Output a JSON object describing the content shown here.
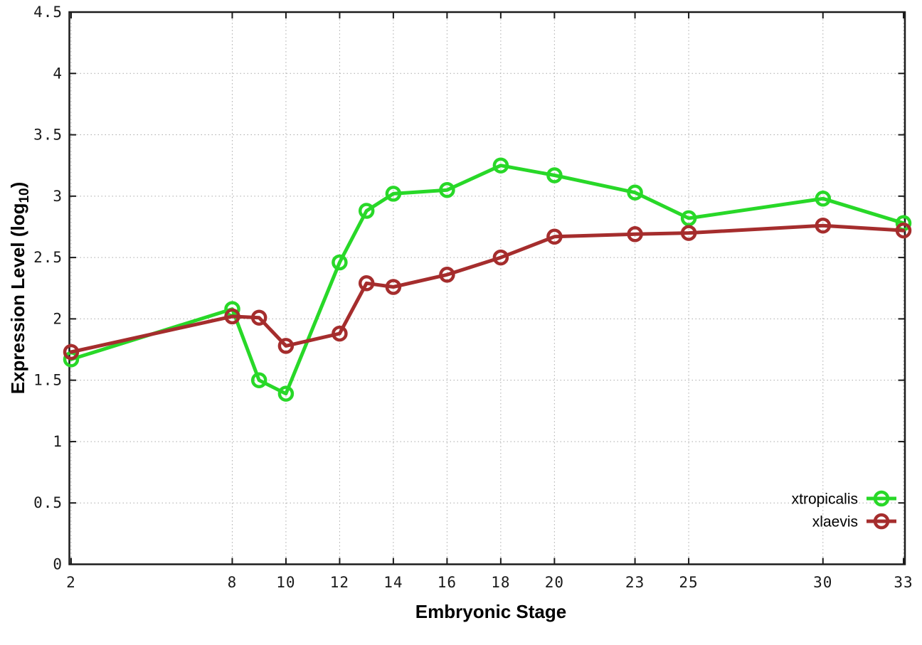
{
  "figure": {
    "background": "#ffffff",
    "xlabel": "Embryonic Stage",
    "ylabel": {
      "prefix": "Expression Level (log",
      "sub": "10",
      "suffix": ")"
    },
    "border_color": "#1c1c1c",
    "grid_color": "#aaaaaa"
  },
  "chart_data": {
    "type": "line",
    "title": "",
    "xlabel": "Embryonic Stage",
    "ylabel": "Expression Level (log10)",
    "x": [
      2,
      8,
      9,
      10,
      12,
      13,
      14,
      16,
      18,
      20,
      23,
      25,
      30,
      33
    ],
    "series": [
      {
        "name": "xtropicalis",
        "color": "#28d828",
        "values": [
          1.67,
          2.08,
          1.5,
          1.39,
          2.46,
          2.88,
          3.02,
          3.05,
          3.25,
          3.17,
          3.03,
          2.82,
          2.98,
          2.78
        ]
      },
      {
        "name": "xlaevis",
        "color": "#a52d2d",
        "values": [
          1.73,
          2.02,
          2.01,
          1.78,
          1.88,
          2.29,
          2.26,
          2.36,
          2.5,
          2.67,
          2.69,
          2.7,
          2.76,
          2.72
        ]
      }
    ],
    "xlim": [
      2,
      33
    ],
    "ylim": [
      0,
      4.5
    ],
    "x_ticks": [
      2,
      8,
      10,
      12,
      14,
      16,
      18,
      20,
      23,
      25,
      30,
      33
    ],
    "y_ticks": [
      0,
      0.5,
      1,
      1.5,
      2,
      2.5,
      3,
      3.5,
      4,
      4.5
    ],
    "grid": true,
    "grid_style": "dotted",
    "marker": "open-circle",
    "legend_position": "bottom-right"
  }
}
